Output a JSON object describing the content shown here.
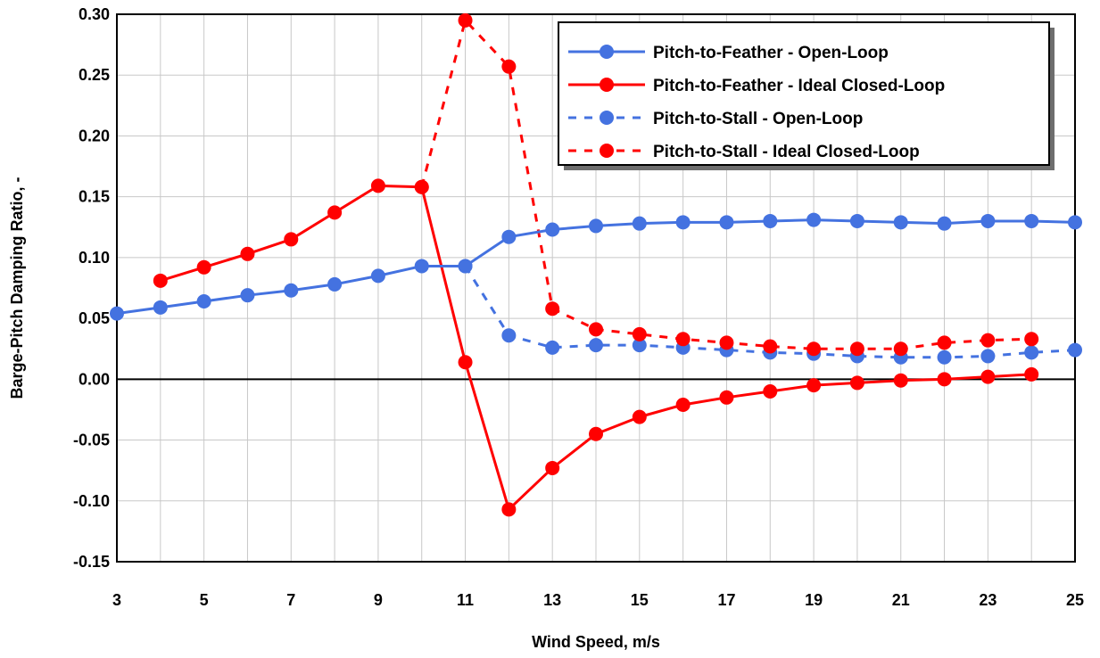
{
  "chart_data": {
    "type": "line",
    "title": "",
    "xlabel": "Wind Speed, m/s",
    "ylabel": "Barge-Pitch Damping Ratio, -",
    "xlim": [
      3,
      25
    ],
    "ylim": [
      -0.15,
      0.3
    ],
    "x_ticks": [
      "3",
      "5",
      "7",
      "9",
      "11",
      "13",
      "15",
      "17",
      "19",
      "21",
      "23",
      "25"
    ],
    "y_ticks": [
      "0.30",
      "0.25",
      "0.20",
      "0.15",
      "0.10",
      "0.05",
      "0.00",
      "-0.05",
      "-0.10",
      "-0.15"
    ],
    "grid": true,
    "legend_position": "top-right",
    "series": [
      {
        "name": "Pitch-to-Feather - Open-Loop",
        "color": "#4472E0",
        "line_style": "solid",
        "x": [
          3,
          4,
          5,
          6,
          7,
          8,
          9,
          10,
          11,
          12,
          13,
          14,
          15,
          16,
          17,
          18,
          19,
          20,
          21,
          22,
          23,
          24,
          25
        ],
        "y": [
          0.054,
          0.059,
          0.064,
          0.069,
          0.073,
          0.078,
          0.085,
          0.093,
          0.093,
          0.117,
          0.123,
          0.126,
          0.128,
          0.129,
          0.129,
          0.13,
          0.131,
          0.13,
          0.129,
          0.128,
          0.13,
          0.13,
          0.129
        ]
      },
      {
        "name": "Pitch-to-Feather - Ideal Closed-Loop",
        "color": "#FF0000",
        "line_style": "solid",
        "x": [
          4,
          5,
          6,
          7,
          8,
          9,
          10,
          11,
          12,
          13,
          14,
          15,
          16,
          17,
          18,
          19,
          20,
          21,
          22,
          23,
          24
        ],
        "y": [
          0.081,
          0.092,
          0.103,
          0.115,
          0.137,
          0.159,
          0.158,
          0.014,
          -0.107,
          -0.073,
          -0.045,
          -0.031,
          -0.021,
          -0.015,
          -0.01,
          -0.005,
          -0.003,
          -0.001,
          0.0,
          0.002,
          0.004
        ]
      },
      {
        "name": "Pitch-to-Stall - Open-Loop",
        "color": "#4472E0",
        "line_style": "dashed",
        "x": [
          11,
          12,
          13,
          14,
          15,
          16,
          17,
          18,
          19,
          20,
          21,
          22,
          23,
          24,
          25
        ],
        "y": [
          0.093,
          0.036,
          0.026,
          0.028,
          0.028,
          0.026,
          0.024,
          0.022,
          0.021,
          0.019,
          0.018,
          0.018,
          0.019,
          0.022,
          0.024
        ]
      },
      {
        "name": "Pitch-to-Stall - Ideal Closed-Loop",
        "color": "#FF0000",
        "line_style": "dashed",
        "x": [
          10,
          11,
          12,
          13,
          14,
          15,
          16,
          17,
          18,
          19,
          20,
          21,
          22,
          23,
          24
        ],
        "y": [
          0.158,
          0.295,
          0.257,
          0.058,
          0.041,
          0.037,
          0.033,
          0.03,
          0.027,
          0.025,
          0.025,
          0.025,
          0.03,
          0.032,
          0.033
        ]
      }
    ]
  }
}
